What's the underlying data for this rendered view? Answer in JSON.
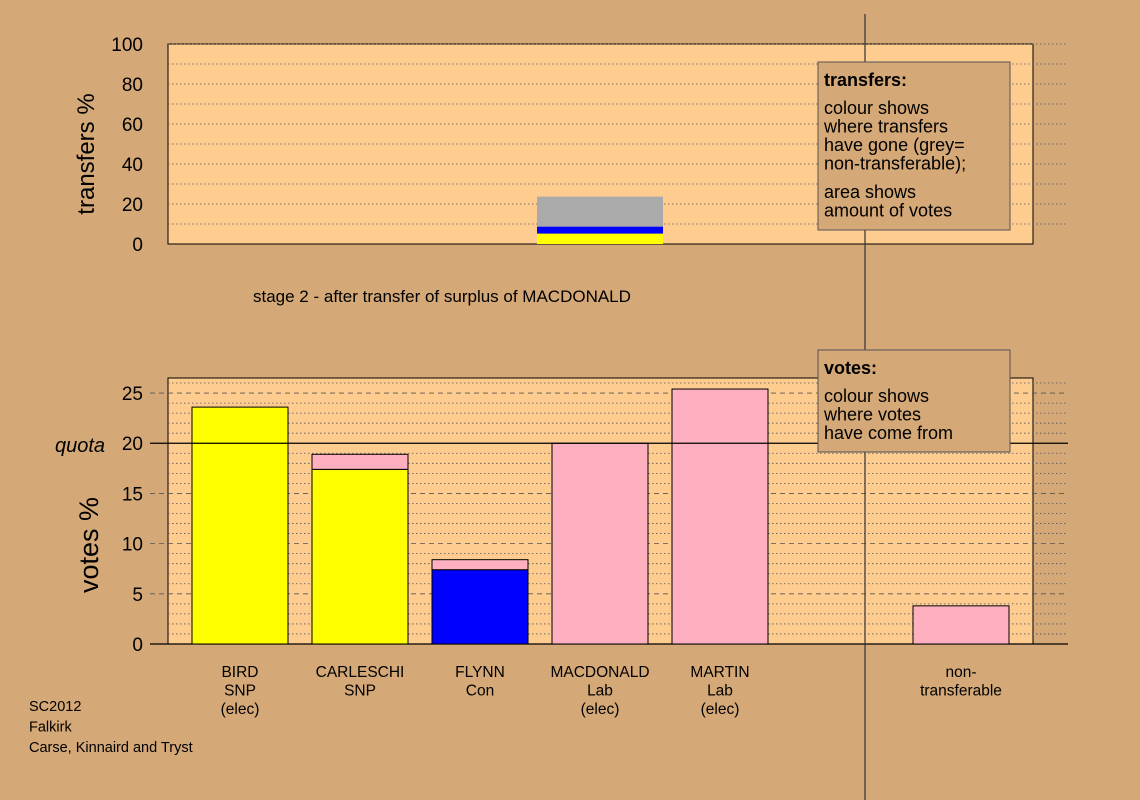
{
  "page": {
    "stage_title": "stage 2 - after transfer of surplus of MACDONALD",
    "footer": [
      "SC2012",
      "Falkirk",
      "Carse, Kinnaird and Tryst"
    ],
    "background_color": "#d4a877",
    "plot_color": "#ffcc8f"
  },
  "legends": {
    "transfers": {
      "heading": "transfers:",
      "lines": [
        "colour shows",
        "where transfers",
        "have gone (grey=",
        "non-transferable);"
      ],
      "lines2": [
        "area shows",
        "amount of votes"
      ]
    },
    "votes": {
      "heading": "votes:",
      "lines": [
        "colour shows",
        "where votes",
        "have come from"
      ]
    }
  },
  "chart_data": [
    {
      "type": "bar",
      "stacked": true,
      "ylabel": "transfers %",
      "ylim": [
        0,
        100
      ],
      "yticks": [
        0,
        20,
        40,
        60,
        80,
        100
      ],
      "grid": true,
      "bars": [
        {
          "category": "MACDONALD",
          "segments": [
            {
              "name": "SNP",
              "color": "#ffff00",
              "value": 5.2
            },
            {
              "name": "Con",
              "color": "#0000ff",
              "value": 3.5
            },
            {
              "name": "non-transferable",
              "color": "#aaaaaa",
              "value": 15.0
            }
          ]
        }
      ]
    },
    {
      "type": "bar",
      "stacked": true,
      "ylabel": "votes %",
      "ylim": [
        0,
        26.5
      ],
      "yticks": [
        0,
        5,
        10,
        15,
        20,
        25
      ],
      "quota_label": "quota",
      "quota": 20,
      "grid": true,
      "categories": [
        {
          "lines": [
            "BIRD",
            "SNP",
            "(elec)"
          ]
        },
        {
          "lines": [
            "CARLESCHI",
            "SNP"
          ]
        },
        {
          "lines": [
            "FLYNN",
            "Con"
          ]
        },
        {
          "lines": [
            "MACDONALD",
            "Lab",
            "(elec)"
          ]
        },
        {
          "lines": [
            "MARTIN",
            "Lab",
            "(elec)"
          ]
        },
        {
          "lines": []
        },
        {
          "lines": [
            "non-",
            "transferable"
          ]
        }
      ],
      "bars": [
        {
          "segments": [
            {
              "color": "#ffff00",
              "value": 23.6
            }
          ]
        },
        {
          "segments": [
            {
              "color": "#ffff00",
              "value": 17.4
            },
            {
              "color": "#ffb0c0",
              "value": 1.5
            }
          ]
        },
        {
          "segments": [
            {
              "color": "#0000ff",
              "value": 7.4
            },
            {
              "color": "#ffb0c0",
              "value": 1.0
            }
          ]
        },
        {
          "segments": [
            {
              "color": "#ffb0c0",
              "value": 20.0
            }
          ]
        },
        {
          "segments": [
            {
              "color": "#ffb0c0",
              "value": 25.4
            }
          ]
        },
        {
          "segments": []
        },
        {
          "segments": [
            {
              "color": "#ffb0c0",
              "value": 3.8
            }
          ]
        }
      ]
    }
  ]
}
